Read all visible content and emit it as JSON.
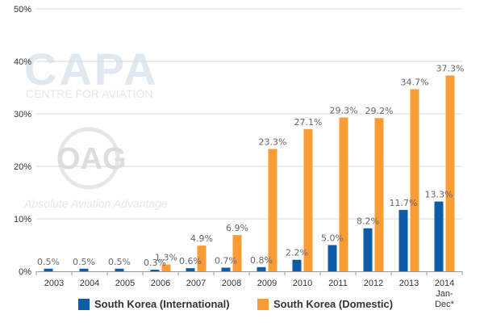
{
  "chart_data": {
    "type": "bar",
    "categories": [
      [
        "2003"
      ],
      [
        "2004"
      ],
      [
        "2005"
      ],
      [
        "2006"
      ],
      [
        "2007"
      ],
      [
        "2008"
      ],
      [
        "2009"
      ],
      [
        "2010"
      ],
      [
        "2011"
      ],
      [
        "2012"
      ],
      [
        "2013"
      ],
      [
        "2014",
        "Jan-",
        "Dec*"
      ]
    ],
    "series": [
      {
        "name": "South Korea (International)",
        "color": "#0E5CA8",
        "values": [
          0.5,
          0.5,
          0.5,
          0.3,
          0.6,
          0.7,
          0.8,
          2.2,
          5.0,
          8.2,
          11.7,
          13.3
        ],
        "labels": [
          "0.5%",
          "0.5%",
          "0.5%",
          "0.3%",
          "0.6%",
          "0.7%",
          "0.8%",
          "2.2%",
          "5.0%",
          "8.2%",
          "11.7%",
          "13.3%"
        ]
      },
      {
        "name": "South Korea (Domestic)",
        "color": "#F99C34",
        "values": [
          0,
          0,
          0,
          1.3,
          4.9,
          6.9,
          23.3,
          27.1,
          29.3,
          29.2,
          34.7,
          37.3
        ],
        "labels": [
          "",
          "",
          "",
          "1.3%",
          "4.9%",
          "6.9%",
          "23.3%",
          "27.1%",
          "29.3%",
          "29.2%",
          "34.7%",
          "37.3%"
        ]
      }
    ],
    "ylim": [
      0,
      50
    ],
    "yticks": [
      "0%",
      "10%",
      "20%",
      "30%",
      "40%",
      "50%"
    ],
    "grid": true,
    "legend_position": "bottom"
  },
  "watermarks": {
    "capa_logo": "CAPA",
    "capa_tagline": "CENTRE FOR AVIATION",
    "oag_logo": "OAG",
    "oag_tagline": "Absolute Aviation Advantage"
  }
}
